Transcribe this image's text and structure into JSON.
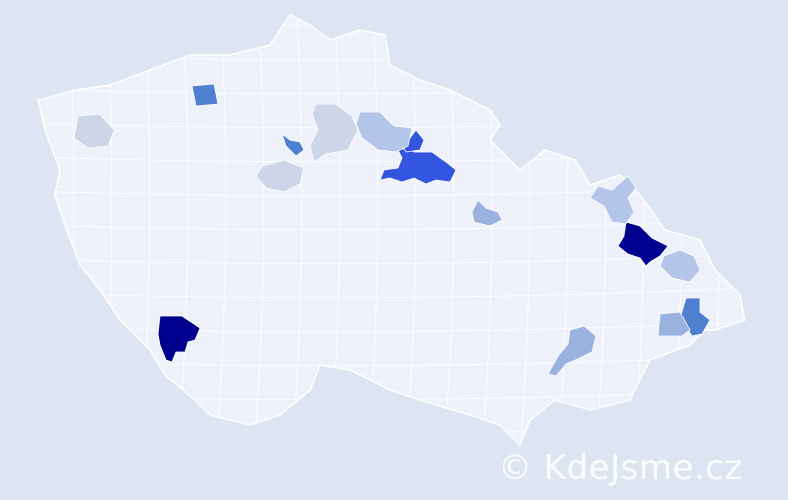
{
  "map": {
    "background_color": "#dde5f2",
    "land_color": "#eef1f9",
    "border_color": "#ffffff",
    "highlight_levels": [
      {
        "level": "highest",
        "color": "#00008f"
      },
      {
        "level": "high",
        "color": "#3355e0"
      },
      {
        "level": "medium",
        "color": "#4f7fd0"
      },
      {
        "level": "low",
        "color": "#9bb1e0"
      },
      {
        "level": "lower",
        "color": "#b3c5e8"
      },
      {
        "level": "lowest",
        "color": "#cdd6e8"
      }
    ]
  },
  "watermark": "© KdeJsme.cz"
}
